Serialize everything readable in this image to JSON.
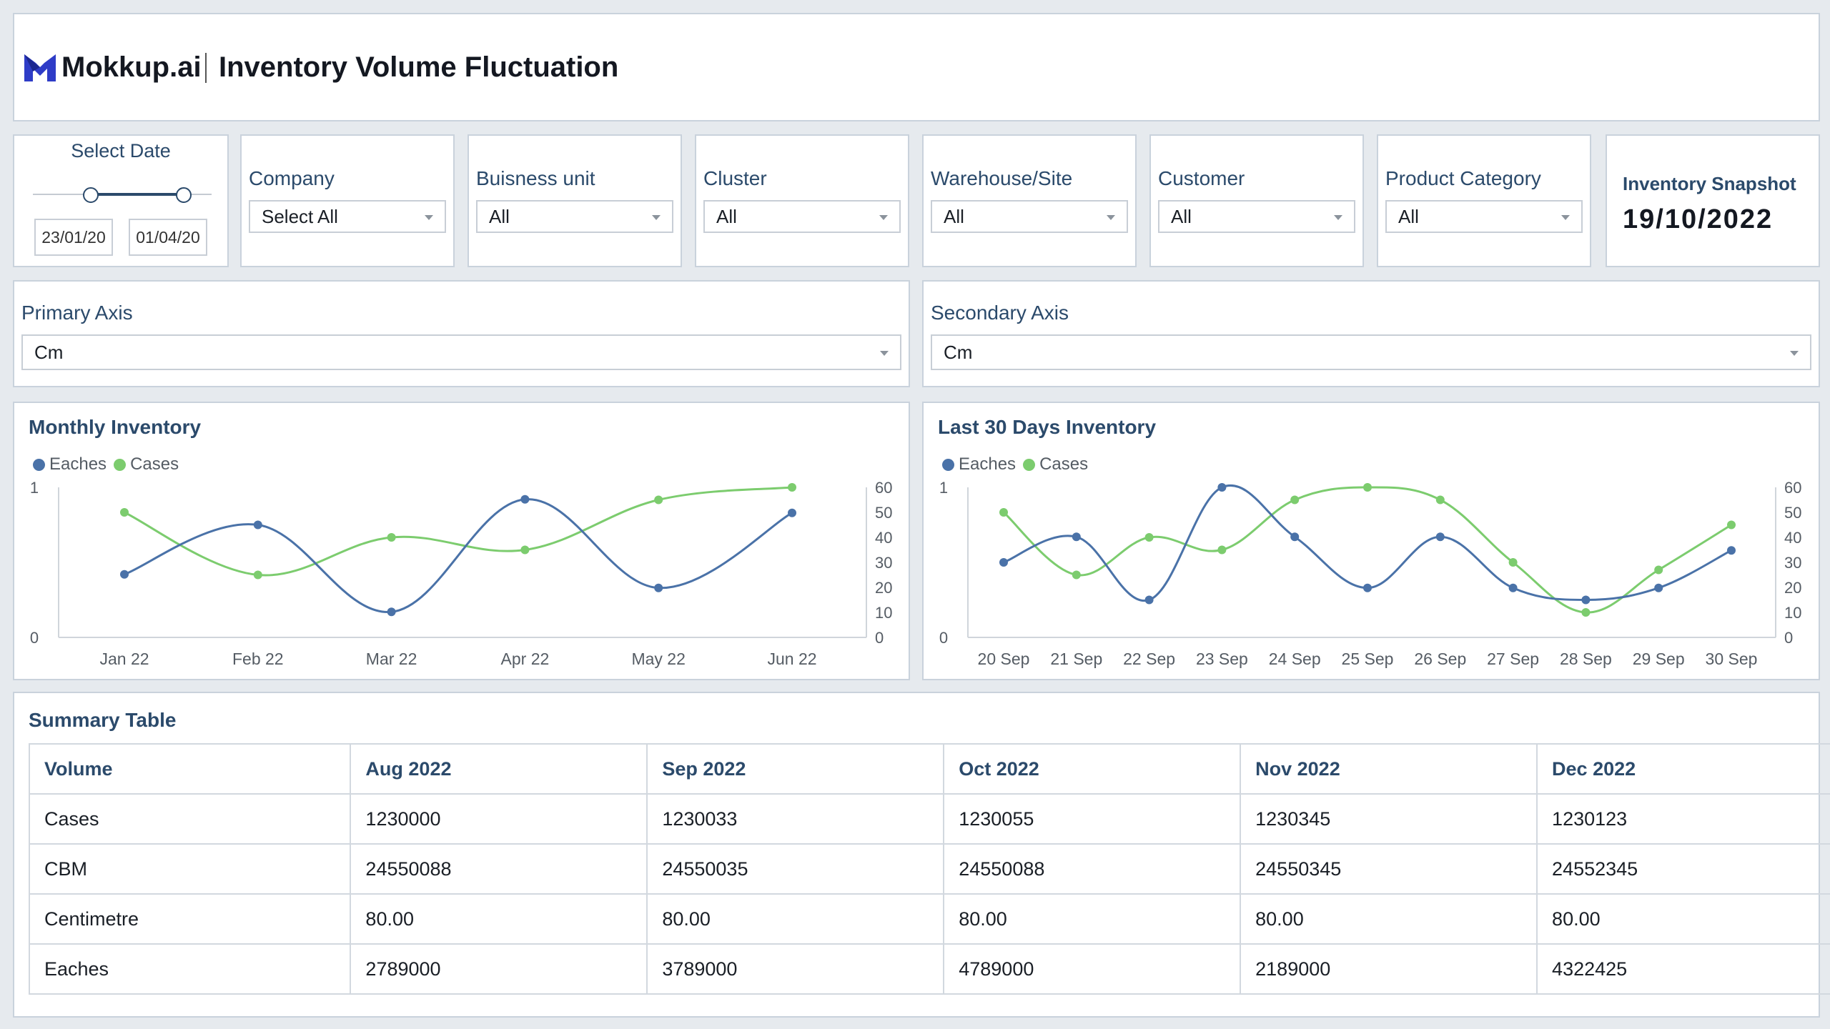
{
  "header": {
    "brand": "Mokkup.ai",
    "title": "Inventory Volume Fluctuation"
  },
  "date_filter": {
    "label": "Select Date",
    "start": "23/01/20",
    "end": "01/04/20"
  },
  "filters": [
    {
      "label": "Company",
      "value": "Select All"
    },
    {
      "label": "Buisness unit",
      "value": "All"
    },
    {
      "label": "Cluster",
      "value": "All"
    },
    {
      "label": "Warehouse/Site",
      "value": "All"
    },
    {
      "label": "Customer",
      "value": "All"
    },
    {
      "label": "Product Category",
      "value": "All"
    }
  ],
  "snapshot": {
    "label": "Inventory Snapshot",
    "value": "19/10/2022"
  },
  "axis_selectors": {
    "primary": {
      "label": "Primary Axis",
      "value": "Cm"
    },
    "secondary": {
      "label": "Secondary Axis",
      "value": "Cm"
    }
  },
  "colors": {
    "eaches": "#4a72a8",
    "cases": "#7ccc6e",
    "heading": "#2b4a6b"
  },
  "chart_data": [
    {
      "type": "line",
      "title": "Monthly Inventory",
      "categories": [
        "Jan 22",
        "Feb 22",
        "Mar 22",
        "Apr 22",
        "May 22",
        "Jun 22"
      ],
      "series": [
        {
          "name": "Eaches",
          "axis": "left",
          "values": [
            0.42,
            0.75,
            0.17,
            0.92,
            0.33,
            0.83
          ]
        },
        {
          "name": "Cases",
          "axis": "right",
          "values": [
            50,
            25,
            40,
            35,
            55,
            60
          ]
        }
      ],
      "y_left": {
        "range": [
          0,
          1
        ],
        "ticks": [
          "1",
          "0"
        ]
      },
      "y_right": {
        "range": [
          0,
          60
        ],
        "ticks": [
          "60",
          "50",
          "40",
          "30",
          "20",
          "10",
          "0"
        ]
      },
      "smooth": true
    },
    {
      "type": "line",
      "title": "Last 30 Days Inventory",
      "categories": [
        "20 Sep",
        "21 Sep",
        "22 Sep",
        "23 Sep",
        "24 Sep",
        "25 Sep",
        "26 Sep",
        "27 Sep",
        "28 Sep",
        "29 Sep",
        "30 Sep"
      ],
      "series": [
        {
          "name": "Eaches",
          "axis": "left",
          "values": [
            0.5,
            0.67,
            0.25,
            1.0,
            0.67,
            0.33,
            0.67,
            0.33,
            0.25,
            0.33,
            0.58
          ]
        },
        {
          "name": "Cases",
          "axis": "right",
          "values": [
            50,
            25,
            40,
            35,
            55,
            60,
            55,
            30,
            10,
            27,
            45
          ]
        }
      ],
      "y_left": {
        "range": [
          0,
          1
        ],
        "ticks": [
          "1",
          "0"
        ]
      },
      "y_right": {
        "range": [
          0,
          60
        ],
        "ticks": [
          "60",
          "50",
          "40",
          "30",
          "20",
          "10",
          "0"
        ]
      },
      "smooth": true
    }
  ],
  "summary": {
    "title": "Summary Table",
    "columns": [
      "Volume",
      "Aug 2022",
      "Sep 2022",
      "Oct 2022",
      "Nov 2022",
      "Dec 2022"
    ],
    "rows": [
      [
        "Cases",
        "1230000",
        "1230033",
        "1230055",
        "1230345",
        "1230123"
      ],
      [
        "CBM",
        "24550088",
        "24550035",
        "24550088",
        "24550345",
        "24552345"
      ],
      [
        "Centimetre",
        "80.00",
        "80.00",
        "80.00",
        "80.00",
        "80.00"
      ],
      [
        "Eaches",
        "2789000",
        "3789000",
        "4789000",
        "2189000",
        "4322425"
      ]
    ]
  }
}
